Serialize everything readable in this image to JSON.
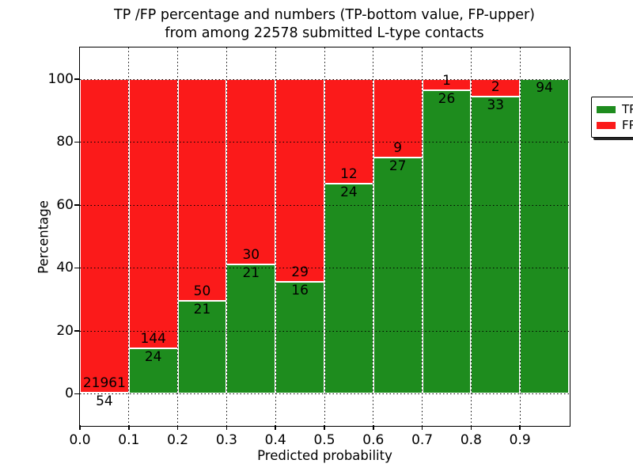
{
  "title": {
    "line1": "TP /FP percentage and numbers (TP-bottom value, FP-upper)",
    "line2": "from among 22578 submitted L-type contacts"
  },
  "chart_data": {
    "type": "bar",
    "stacked": true,
    "title": "TP /FP percentage and numbers (TP-bottom value, FP-upper) from among 22578 submitted L-type contacts",
    "total_submitted": 22578,
    "xlabel": "Predicted probability",
    "ylabel": "Percentage",
    "xlim": [
      0.0,
      1.0
    ],
    "ylim": [
      -10,
      110
    ],
    "bin_start": [
      0.0,
      0.1,
      0.2,
      0.3,
      0.4,
      0.5,
      0.6,
      0.7,
      0.8,
      0.9
    ],
    "bin_width": 0.1,
    "series": [
      {
        "name": "TP",
        "color": "#1e8c1e",
        "counts": [
          54,
          24,
          21,
          21,
          16,
          24,
          27,
          26,
          33,
          94
        ]
      },
      {
        "name": "FP",
        "color": "#fb1a1a",
        "counts": [
          21961,
          144,
          50,
          30,
          29,
          12,
          9,
          1,
          2,
          0
        ]
      }
    ],
    "tp_percent": [
      0.25,
      14.29,
      29.58,
      41.18,
      35.56,
      66.67,
      75.0,
      96.3,
      94.29,
      100.0
    ],
    "grid": true,
    "yticks": [
      0,
      20,
      40,
      60,
      80,
      100
    ],
    "ytick_labels": [
      "0",
      "20",
      "40",
      "60",
      "80",
      "100"
    ],
    "xticks": [
      0.0,
      0.1,
      0.2,
      0.3,
      0.4,
      0.5,
      0.6,
      0.7,
      0.8,
      0.9
    ],
    "xtick_labels": [
      "0.0",
      "0.1",
      "0.2",
      "0.3",
      "0.4",
      "0.5",
      "0.6",
      "0.7",
      "0.8",
      "0.9"
    ],
    "legend": {
      "position": "upper right",
      "entries": [
        {
          "label": "TP",
          "color": "#1e8c1e"
        },
        {
          "label": "FP",
          "color": "#fb1a1a"
        }
      ]
    }
  }
}
